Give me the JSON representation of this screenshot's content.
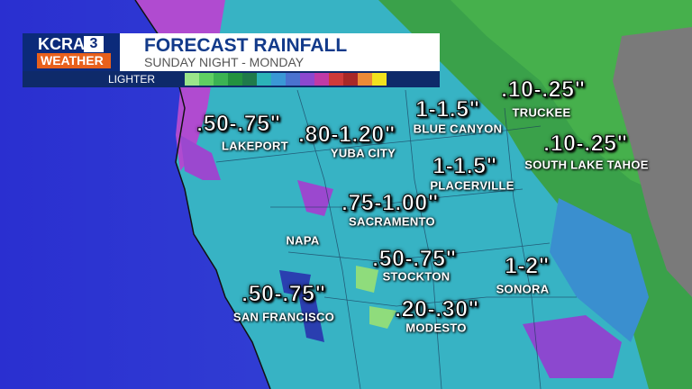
{
  "logo": {
    "station": "KCRA",
    "channel": "3",
    "label": "WEATHER"
  },
  "header": {
    "title": "FORECAST RAINFALL",
    "subtitle": "SUNDAY NIGHT - MONDAY"
  },
  "legend": {
    "label": "LIGHTER",
    "colors": [
      "#9be58a",
      "#5fcf62",
      "#3bb352",
      "#23923f",
      "#1f7a4a",
      "#2bb3b8",
      "#3a98d6",
      "#4a72cf",
      "#8c48cf",
      "#c03aa6",
      "#cf3a3a",
      "#a82828",
      "#ec8a36",
      "#f2e21e"
    ]
  },
  "locations": [
    {
      "name": "LAKEPORT",
      "amount": ".50-.75\""
    },
    {
      "name": "YUBA CITY",
      "amount": ".80-1.20\""
    },
    {
      "name": "BLUE CANYON",
      "amount": "1-1.5\""
    },
    {
      "name": "TRUCKEE",
      "amount": ".10-.25\""
    },
    {
      "name": "SOUTH LAKE TAHOE",
      "amount": ".10-.25\""
    },
    {
      "name": "PLACERVILLE",
      "amount": "1-1.5\""
    },
    {
      "name": "SACRAMENTO",
      "amount": ".75-1.00\""
    },
    {
      "name": "NAPA"
    },
    {
      "name": "STOCKTON",
      "amount": ".50-.75\""
    },
    {
      "name": "SONORA",
      "amount": "1-2\""
    },
    {
      "name": "SAN FRANCISCO",
      "amount": ".50-.75\""
    },
    {
      "name": "MODESTO",
      "amount": ".20-.30\""
    }
  ]
}
